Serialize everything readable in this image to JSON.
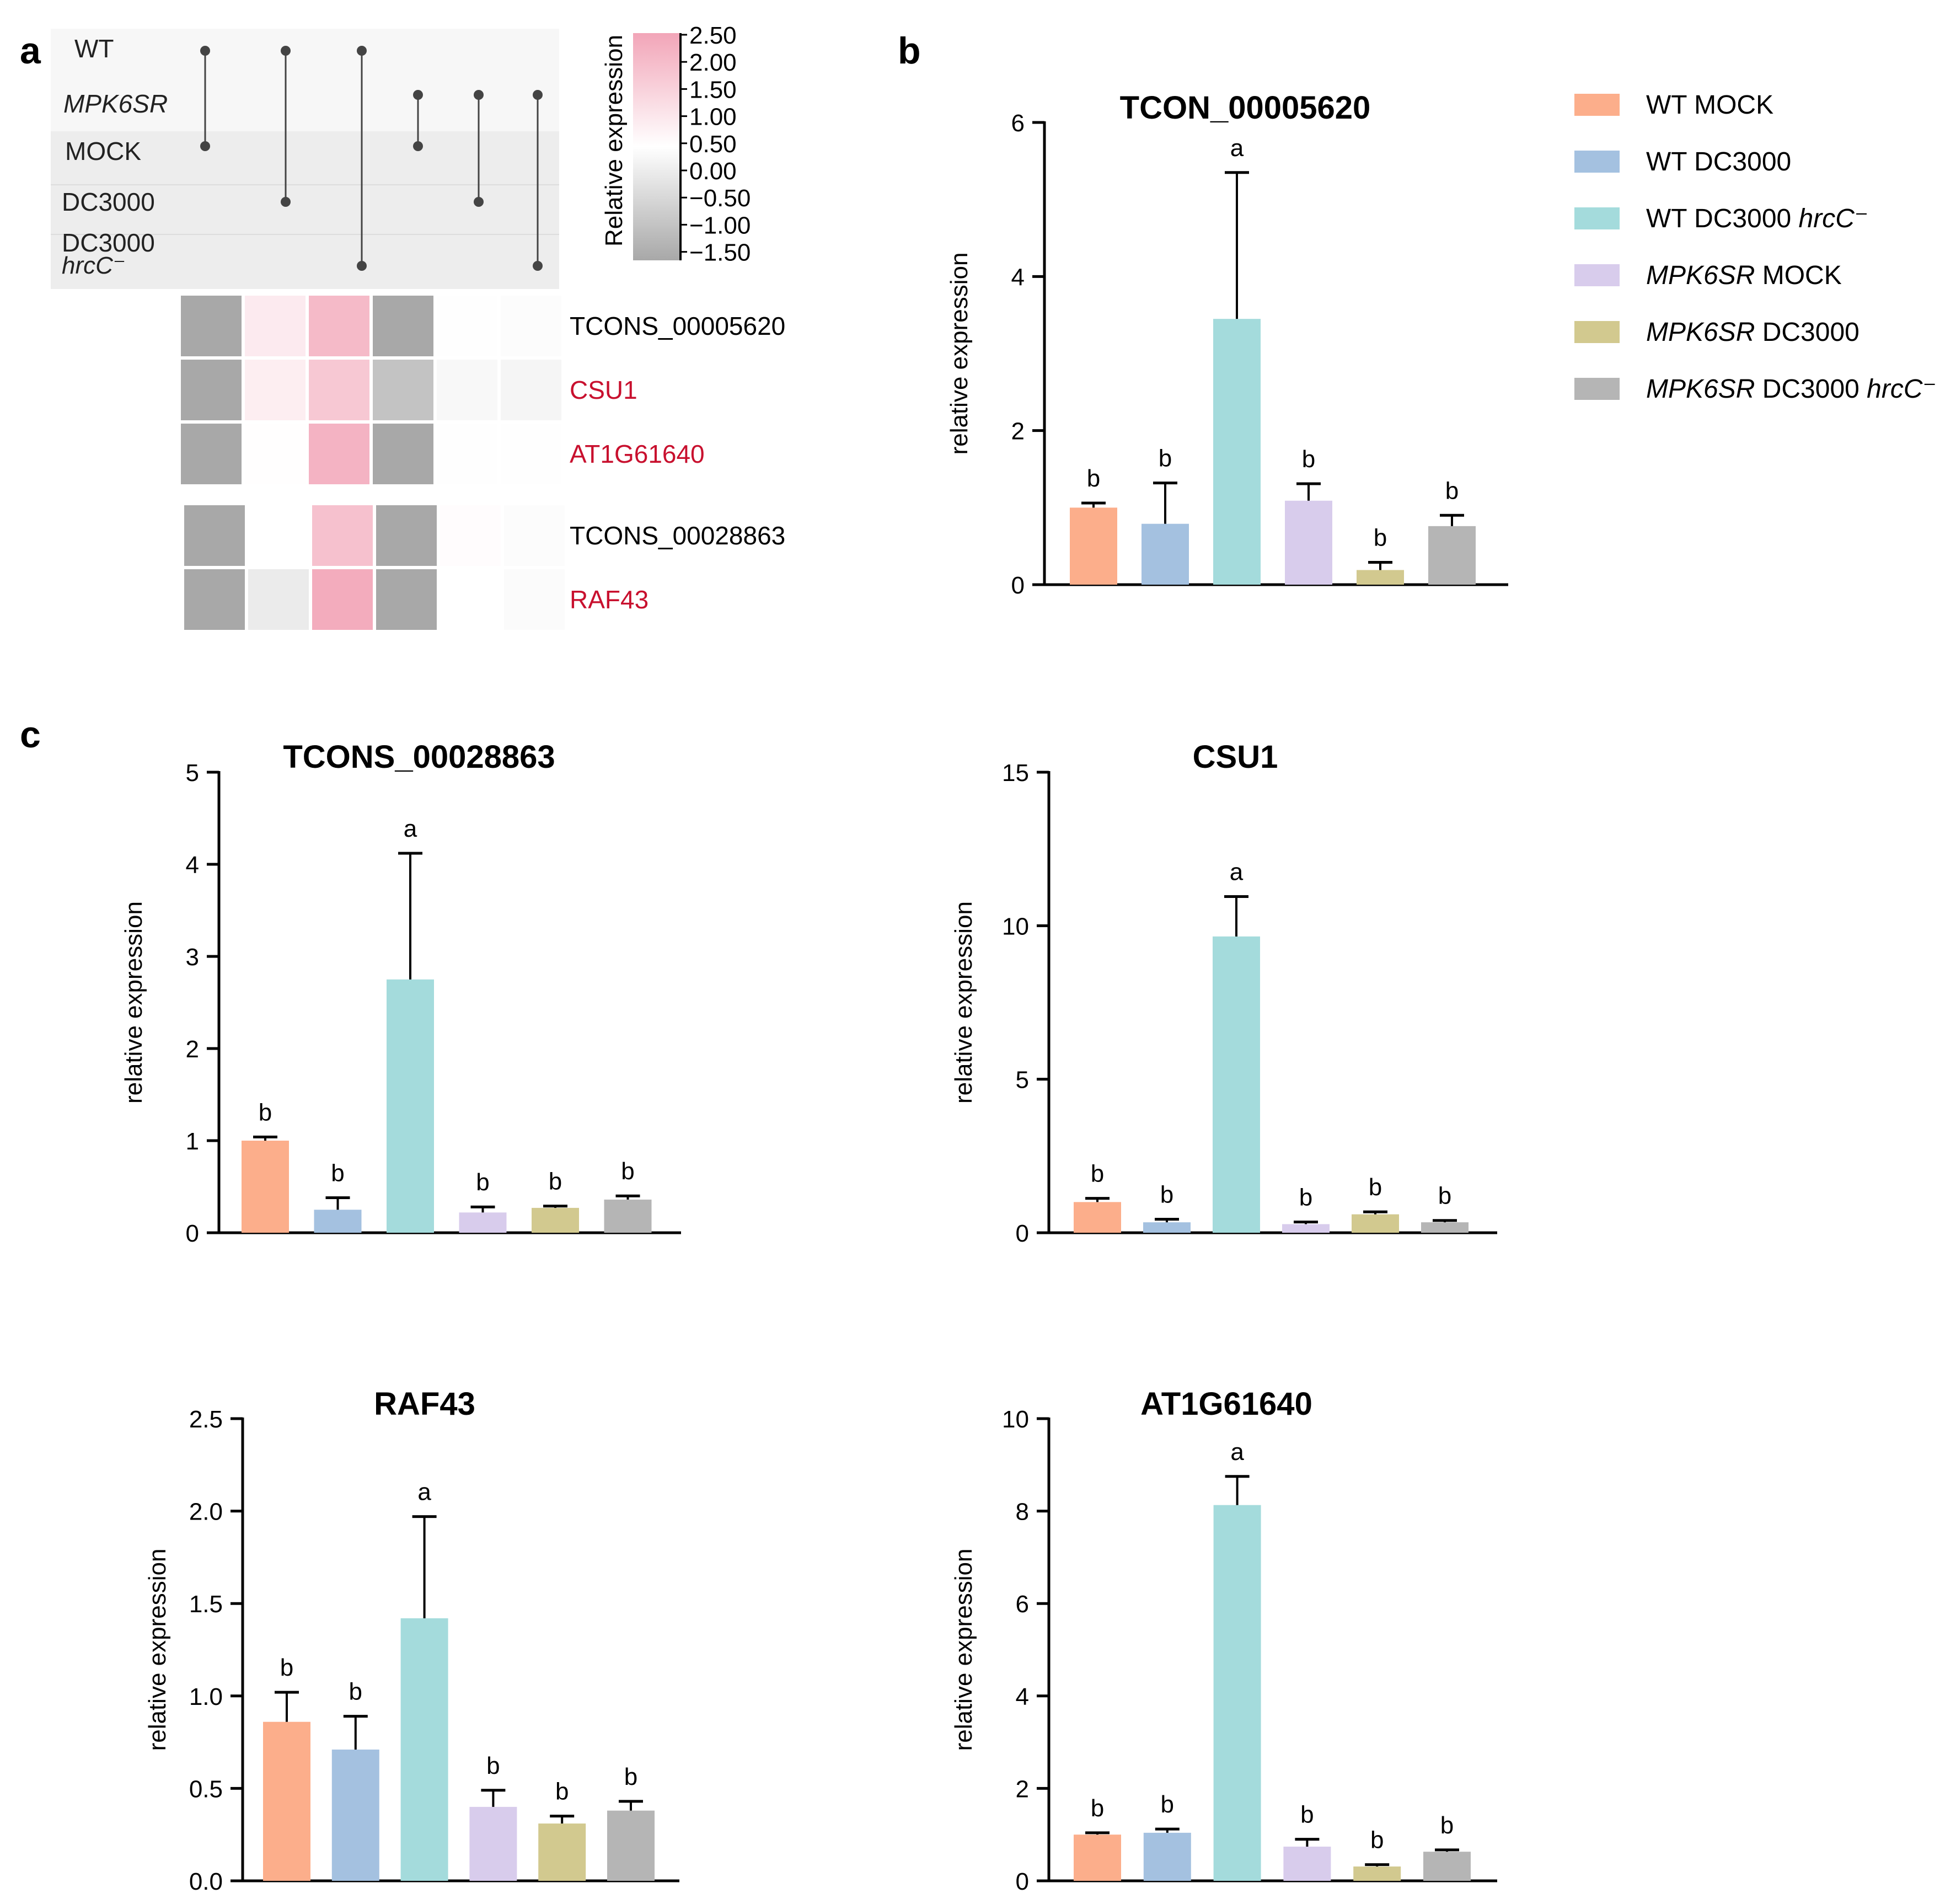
{
  "panel_labels": {
    "a": "a",
    "b": "b",
    "c": "c"
  },
  "groups": [
    {
      "name": "WT MOCK",
      "parts": [
        [
          "WT",
          false
        ],
        [
          " MOCK",
          false
        ]
      ],
      "color": "#fcae8b"
    },
    {
      "name": "WT DC3000",
      "parts": [
        [
          "WT DC3000",
          false
        ]
      ],
      "color": "#a4c1e0"
    },
    {
      "name": "WT DC3000 hrcC−",
      "parts": [
        [
          "WT DC3000 ",
          false
        ],
        [
          "hrcC⁻",
          true
        ]
      ],
      "color": "#a4dbdc"
    },
    {
      "name": "MPK6SR MOCK",
      "parts": [
        [
          "MPK6SR",
          true
        ],
        [
          " MOCK",
          false
        ]
      ],
      "color": "#d8ccec"
    },
    {
      "name": "MPK6SR DC3000",
      "parts": [
        [
          "MPK6SR",
          true
        ],
        [
          " DC3000",
          false
        ]
      ],
      "color": "#d2c98f"
    },
    {
      "name": "MPK6SR DC3000 hrcC−",
      "parts": [
        [
          "MPK6SR",
          true
        ],
        [
          " DC3000 ",
          false
        ],
        [
          "hrcC⁻",
          true
        ]
      ],
      "color": "#b5b5b5"
    }
  ],
  "panel_a": {
    "matrix_rows": [
      {
        "label": "WT",
        "italic": false
      },
      {
        "label": "MPK6SR",
        "italic": true
      },
      {
        "label": "MOCK",
        "italic": false
      },
      {
        "label": "DC3000",
        "italic": false
      },
      {
        "label": "DC3000",
        "sub": "hrcC⁻",
        "italic": false
      }
    ],
    "dot_columns": [
      [
        0,
        2
      ],
      [
        0,
        3
      ],
      [
        0,
        4
      ],
      [
        1,
        2
      ],
      [
        1,
        3
      ],
      [
        1,
        4
      ]
    ],
    "colorbar": {
      "title": "Relative expression",
      "ticks": [
        "2.50",
        "2.00",
        "1.50",
        "1.00",
        "0.50",
        "0.00",
        "−0.50",
        "−1.00",
        "−1.50"
      ],
      "top_color": "#f2a5b8",
      "mid_color": "#ffffff",
      "bottom_color": "#a8a8a8"
    },
    "heatmap_blocks": [
      {
        "rows": [
          {
            "label": "TCONS_00005620",
            "highlight": false,
            "values": [
              -1.3,
              0.3,
              1.0,
              -1.3,
              -0.02,
              -0.04
            ]
          },
          {
            "label": "CSU1",
            "highlight": true,
            "values": [
              -1.3,
              0.25,
              0.8,
              -0.9,
              -0.1,
              -0.15
            ]
          },
          {
            "label": "AT1G61640",
            "highlight": true,
            "values": [
              -1.3,
              0.02,
              1.1,
              -1.3,
              -0.01,
              -0.02
            ]
          }
        ]
      },
      {
        "rows": [
          {
            "label": "TCONS_00028863",
            "highlight": false,
            "values": [
              -1.3,
              0.0,
              0.9,
              -1.3,
              0.04,
              -0.04
            ]
          },
          {
            "label": "RAF43",
            "highlight": true,
            "values": [
              -1.3,
              -0.3,
              1.2,
              -1.3,
              0.0,
              -0.06
            ]
          }
        ]
      }
    ],
    "highlight_color": "#c8102e"
  },
  "chart_data": [
    {
      "id": "b",
      "type": "bar",
      "title": "TCON_00005620",
      "ylabel": "relative expression",
      "ylim": [
        0,
        6
      ],
      "yticks": [
        "0",
        "2",
        "4",
        "6"
      ],
      "categories": [
        "WT MOCK",
        "WT DC3000",
        "WT DC3000 hrcC−",
        "MPK6SR MOCK",
        "MPK6SR DC3000",
        "MPK6SR DC3000 hrcC−"
      ],
      "values": [
        1.0,
        0.79,
        3.45,
        1.09,
        0.19,
        0.76
      ],
      "errors": [
        0.06,
        0.53,
        1.9,
        0.22,
        0.1,
        0.14
      ],
      "letters": [
        "b",
        "b",
        "a",
        "b",
        "b",
        "b"
      ]
    },
    {
      "id": "c1",
      "type": "bar",
      "title": "TCONS_00028863",
      "ylabel": "relative expression",
      "ylim": [
        0,
        5
      ],
      "yticks": [
        "0",
        "1",
        "2",
        "3",
        "4",
        "5"
      ],
      "categories": [
        "WT MOCK",
        "WT DC3000",
        "WT DC3000 hrcC−",
        "MPK6SR MOCK",
        "MPK6SR DC3000",
        "MPK6SR DC3000 hrcC−"
      ],
      "values": [
        1.0,
        0.25,
        2.75,
        0.22,
        0.27,
        0.36
      ],
      "errors": [
        0.04,
        0.13,
        1.37,
        0.06,
        0.02,
        0.04
      ],
      "letters": [
        "b",
        "b",
        "a",
        "b",
        "b",
        "b"
      ]
    },
    {
      "id": "c2",
      "type": "bar",
      "title": "CSU1",
      "ylabel": "relative expression",
      "ylim": [
        0,
        15
      ],
      "yticks": [
        "0",
        "5",
        "10",
        "15"
      ],
      "categories": [
        "WT MOCK",
        "WT DC3000",
        "WT DC3000 hrcC−",
        "MPK6SR MOCK",
        "MPK6SR DC3000",
        "MPK6SR DC3000 hrcC−"
      ],
      "values": [
        1.0,
        0.34,
        9.65,
        0.28,
        0.6,
        0.34
      ],
      "errors": [
        0.12,
        0.1,
        1.3,
        0.07,
        0.08,
        0.06
      ],
      "letters": [
        "b",
        "b",
        "a",
        "b",
        "b",
        "b"
      ]
    },
    {
      "id": "c3",
      "type": "bar",
      "title": "RAF43",
      "ylabel": "relative expression",
      "ylim": [
        0,
        2.5
      ],
      "yticks": [
        "0.0",
        "0.5",
        "1.0",
        "1.5",
        "2.0",
        "2.5"
      ],
      "categories": [
        "WT MOCK",
        "WT DC3000",
        "WT DC3000 hrcC−",
        "MPK6SR MOCK",
        "MPK6SR DC3000",
        "MPK6SR DC3000 hrcC−"
      ],
      "values": [
        0.86,
        0.71,
        1.42,
        0.4,
        0.31,
        0.38
      ],
      "errors": [
        0.16,
        0.18,
        0.55,
        0.09,
        0.04,
        0.05
      ],
      "letters": [
        "b",
        "b",
        "a",
        "b",
        "b",
        "b"
      ]
    },
    {
      "id": "c4",
      "type": "bar",
      "title": "AT1G61640",
      "ylabel": "relative expression",
      "ylim": [
        0,
        10
      ],
      "yticks": [
        "0",
        "2",
        "4",
        "6",
        "8",
        "10"
      ],
      "categories": [
        "WT MOCK",
        "WT DC3000",
        "WT DC3000 hrcC−",
        "MPK6SR MOCK",
        "MPK6SR DC3000",
        "MPK6SR DC3000 hrcC−"
      ],
      "values": [
        1.0,
        1.04,
        8.13,
        0.74,
        0.31,
        0.63
      ],
      "errors": [
        0.04,
        0.08,
        0.62,
        0.16,
        0.04,
        0.04
      ],
      "letters": [
        "b",
        "b",
        "a",
        "b",
        "b",
        "b"
      ]
    }
  ]
}
